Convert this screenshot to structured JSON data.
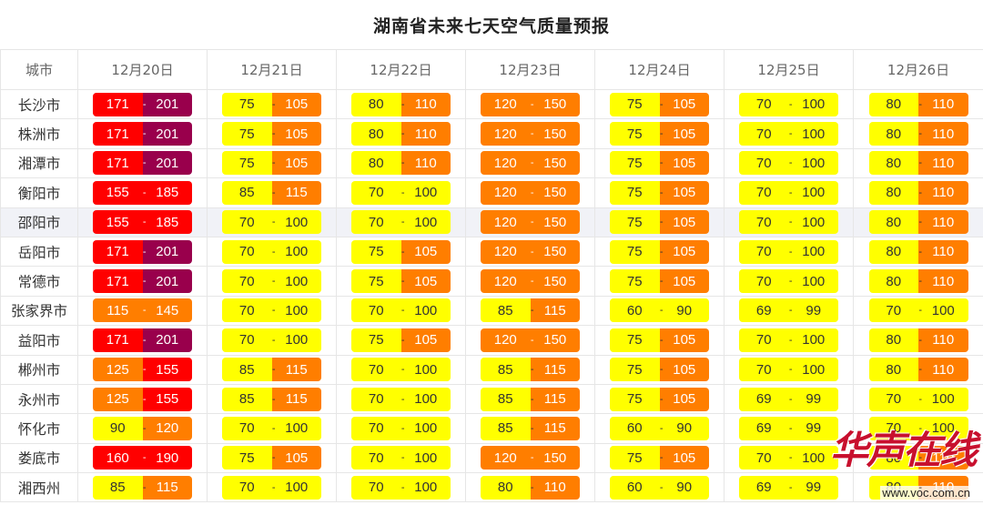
{
  "title": "湖南省未来七天空气质量预报",
  "header": {
    "city_label": "城市",
    "dates": [
      "12月20日",
      "12月21日",
      "12月22日",
      "12月23日",
      "12月24日",
      "12月25日",
      "12月26日"
    ]
  },
  "rows": [
    {
      "city": "长沙市",
      "cells": [
        [
          "171",
          "201"
        ],
        [
          "75",
          "105"
        ],
        [
          "80",
          "110"
        ],
        [
          "120",
          "150"
        ],
        [
          "75",
          "105"
        ],
        [
          "70",
          "100"
        ],
        [
          "80",
          "110"
        ]
      ]
    },
    {
      "city": "株洲市",
      "cells": [
        [
          "171",
          "201"
        ],
        [
          "75",
          "105"
        ],
        [
          "80",
          "110"
        ],
        [
          "120",
          "150"
        ],
        [
          "75",
          "105"
        ],
        [
          "70",
          "100"
        ],
        [
          "80",
          "110"
        ]
      ]
    },
    {
      "city": "湘潭市",
      "cells": [
        [
          "171",
          "201"
        ],
        [
          "75",
          "105"
        ],
        [
          "80",
          "110"
        ],
        [
          "120",
          "150"
        ],
        [
          "75",
          "105"
        ],
        [
          "70",
          "100"
        ],
        [
          "80",
          "110"
        ]
      ]
    },
    {
      "city": "衡阳市",
      "cells": [
        [
          "155",
          "185"
        ],
        [
          "85",
          "115"
        ],
        [
          "70",
          "100"
        ],
        [
          "120",
          "150"
        ],
        [
          "75",
          "105"
        ],
        [
          "70",
          "100"
        ],
        [
          "80",
          "110"
        ]
      ]
    },
    {
      "city": "邵阳市",
      "cells": [
        [
          "155",
          "185"
        ],
        [
          "70",
          "100"
        ],
        [
          "70",
          "100"
        ],
        [
          "120",
          "150"
        ],
        [
          "75",
          "105"
        ],
        [
          "70",
          "100"
        ],
        [
          "80",
          "110"
        ]
      ]
    },
    {
      "city": "岳阳市",
      "cells": [
        [
          "171",
          "201"
        ],
        [
          "70",
          "100"
        ],
        [
          "75",
          "105"
        ],
        [
          "120",
          "150"
        ],
        [
          "75",
          "105"
        ],
        [
          "70",
          "100"
        ],
        [
          "80",
          "110"
        ]
      ]
    },
    {
      "city": "常德市",
      "cells": [
        [
          "171",
          "201"
        ],
        [
          "70",
          "100"
        ],
        [
          "75",
          "105"
        ],
        [
          "120",
          "150"
        ],
        [
          "75",
          "105"
        ],
        [
          "70",
          "100"
        ],
        [
          "80",
          "110"
        ]
      ]
    },
    {
      "city": "张家界市",
      "cells": [
        [
          "115",
          "145"
        ],
        [
          "70",
          "100"
        ],
        [
          "70",
          "100"
        ],
        [
          "85",
          "115"
        ],
        [
          "60",
          "90"
        ],
        [
          "69",
          "99"
        ],
        [
          "70",
          "100"
        ]
      ]
    },
    {
      "city": "益阳市",
      "cells": [
        [
          "171",
          "201"
        ],
        [
          "70",
          "100"
        ],
        [
          "75",
          "105"
        ],
        [
          "120",
          "150"
        ],
        [
          "75",
          "105"
        ],
        [
          "70",
          "100"
        ],
        [
          "80",
          "110"
        ]
      ]
    },
    {
      "city": "郴州市",
      "cells": [
        [
          "125",
          "155"
        ],
        [
          "85",
          "115"
        ],
        [
          "70",
          "100"
        ],
        [
          "85",
          "115"
        ],
        [
          "75",
          "105"
        ],
        [
          "70",
          "100"
        ],
        [
          "80",
          "110"
        ]
      ]
    },
    {
      "city": "永州市",
      "cells": [
        [
          "125",
          "155"
        ],
        [
          "85",
          "115"
        ],
        [
          "70",
          "100"
        ],
        [
          "85",
          "115"
        ],
        [
          "75",
          "105"
        ],
        [
          "69",
          "99"
        ],
        [
          "70",
          "100"
        ]
      ]
    },
    {
      "city": "怀化市",
      "cells": [
        [
          "90",
          "120"
        ],
        [
          "70",
          "100"
        ],
        [
          "70",
          "100"
        ],
        [
          "85",
          "115"
        ],
        [
          "60",
          "90"
        ],
        [
          "69",
          "99"
        ],
        [
          "70",
          "100"
        ]
      ]
    },
    {
      "city": "娄底市",
      "cells": [
        [
          "160",
          "190"
        ],
        [
          "75",
          "105"
        ],
        [
          "70",
          "100"
        ],
        [
          "120",
          "150"
        ],
        [
          "75",
          "105"
        ],
        [
          "70",
          "100"
        ],
        [
          "80",
          "110"
        ]
      ]
    },
    {
      "city": "湘西州",
      "cells": [
        [
          "85",
          "115"
        ],
        [
          "70",
          "100"
        ],
        [
          "70",
          "100"
        ],
        [
          "80",
          "110"
        ],
        [
          "60",
          "90"
        ],
        [
          "69",
          "99"
        ],
        [
          "80",
          "110"
        ]
      ]
    }
  ],
  "level_colors": {
    "yellow": "#ffff00",
    "orange": "#ff7e00",
    "red": "#ff0000",
    "purple": "#99004c"
  },
  "watermark": {
    "logo_text": "华声在线",
    "url": "www.voc.com.cn"
  }
}
